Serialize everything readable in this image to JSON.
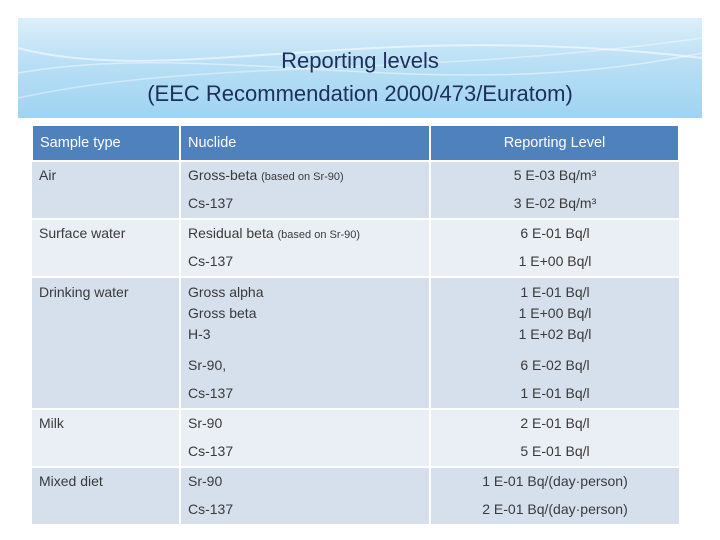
{
  "title": {
    "line1": "Reporting levels",
    "line2": "(EEC  Recommendation 2000/473/Euratom)"
  },
  "table": {
    "headers": [
      "Sample type",
      "Nuclide",
      "Reporting Level"
    ],
    "groups": [
      {
        "sample": "Air",
        "rows": [
          {
            "nuclide": "Gross-beta",
            "note": "(based on Sr-90)",
            "level": "5 E-03 Bq/m³"
          },
          {
            "nuclide": "Cs-137",
            "note": "",
            "level": "3 E-02 Bq/m³"
          }
        ]
      },
      {
        "sample": "Surface water",
        "rows": [
          {
            "nuclide": "Residual beta",
            "note": "(based on Sr-90)",
            "level": "6 E-01 Bq/l"
          },
          {
            "nuclide": "Cs-137",
            "note": "",
            "level": "1 E+00 Bq/l"
          }
        ]
      },
      {
        "sample": "Drinking water",
        "rows": [
          {
            "nuclide": "Gross alpha",
            "note": "",
            "level": "1 E-01 Bq/l"
          },
          {
            "nuclide": "Gross beta",
            "note": "",
            "level": "1 E+00 Bq/l"
          },
          {
            "nuclide": "H-3",
            "note": "",
            "level": "1 E+02 Bq/l"
          },
          {
            "nuclide": "Sr-90,",
            "note": "",
            "level": "6 E-02 Bq/l"
          },
          {
            "nuclide": "Cs-137",
            "note": "",
            "level": "1 E-01 Bq/l"
          }
        ]
      },
      {
        "sample": "Milk",
        "rows": [
          {
            "nuclide": "Sr-90",
            "note": "",
            "level": "2 E-01 Bq/l"
          },
          {
            "nuclide": "Cs-137",
            "note": "",
            "level": "5 E-01 Bq/l"
          }
        ]
      },
      {
        "sample": "Mixed diet",
        "rows": [
          {
            "nuclide": "Sr-90",
            "note": "",
            "level": "1 E-01 Bq/(day·person)"
          },
          {
            "nuclide": "Cs-137",
            "note": "",
            "level": "2 E-01 Bq/(day·person)"
          }
        ]
      }
    ]
  }
}
